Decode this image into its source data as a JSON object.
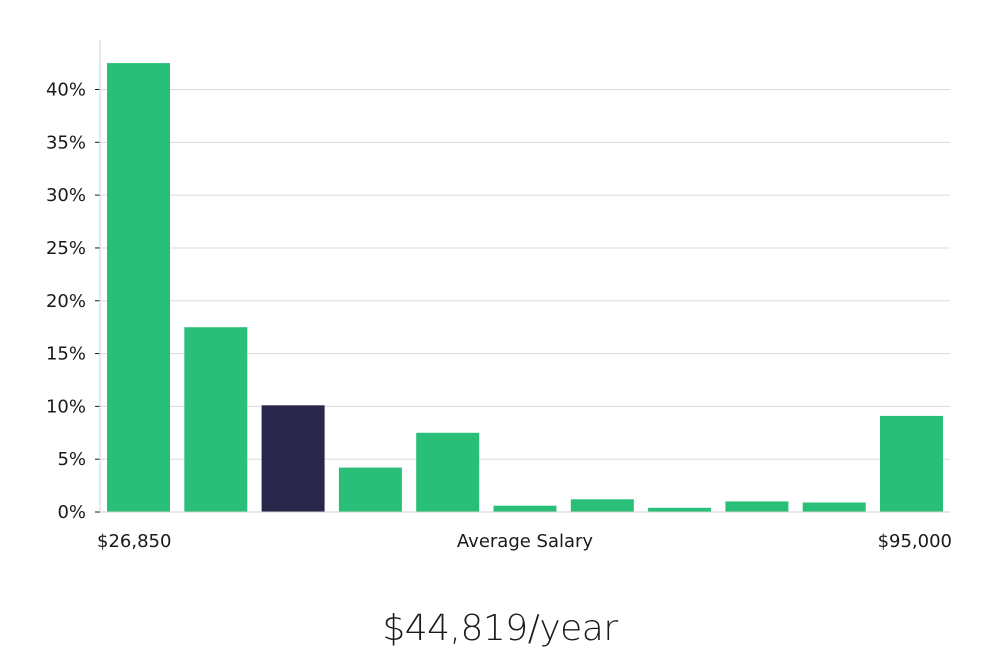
{
  "chart_data": {
    "type": "bar",
    "title": "",
    "xlabel": "Average Salary",
    "ylabel": "",
    "x_min_label": "$26,850",
    "x_max_label": "$95,000",
    "ylim": [
      0,
      45
    ],
    "yticks": [
      0,
      5,
      10,
      15,
      20,
      25,
      30,
      35,
      40
    ],
    "ytick_labels": [
      "0%",
      "5%",
      "10%",
      "15%",
      "20%",
      "25%",
      "30%",
      "35%",
      "40%"
    ],
    "values": [
      42.5,
      17.5,
      10.1,
      4.2,
      7.5,
      0.6,
      1.2,
      0.4,
      1.0,
      0.9,
      9.1
    ],
    "highlight_index": 2,
    "colors": {
      "bar": "#2abf78",
      "highlight": "#28264a",
      "grid": "#dcdcdc",
      "axis": "#d0d0d0"
    }
  },
  "summary": {
    "average_salary": "$44,819/year"
  }
}
